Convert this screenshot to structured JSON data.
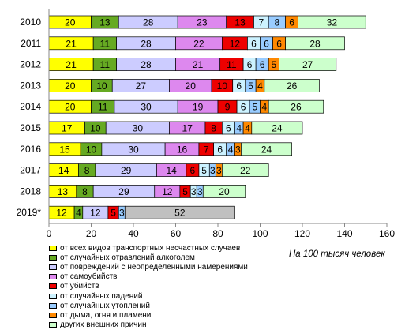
{
  "chart_data": {
    "type": "bar",
    "orientation": "horizontal",
    "stacked": true,
    "categories": [
      "2010",
      "2011",
      "2012",
      "2013",
      "2014",
      "2015",
      "2016",
      "2017",
      "2018",
      "2019*"
    ],
    "xlim": [
      0,
      160
    ],
    "xticks": [
      0,
      20,
      40,
      60,
      80,
      100,
      120,
      140,
      160
    ],
    "grid": false,
    "legend_position": "bottom-left",
    "note": "На 100 тысяч человек",
    "series": [
      {
        "name": "от всех видов транспортных несчастных случаев",
        "color": "#ffff00",
        "values": [
          20,
          21,
          21,
          20,
          20,
          17,
          15,
          14,
          13,
          12
        ]
      },
      {
        "name": "от случайных отравлений алкоголем",
        "color": "#66aa22",
        "values": [
          13,
          11,
          11,
          10,
          11,
          10,
          10,
          8,
          8,
          4
        ]
      },
      {
        "name": "от повреждений с неопределенными  намерениями",
        "color": "#ccccff",
        "values": [
          28,
          28,
          28,
          27,
          30,
          30,
          30,
          29,
          29,
          12
        ]
      },
      {
        "name": "от самоубийств",
        "color": "#dd88ee",
        "values": [
          23,
          22,
          21,
          20,
          19,
          17,
          16,
          14,
          12,
          0
        ]
      },
      {
        "name": "от убийств",
        "color": "#ee0000",
        "values": [
          13,
          12,
          11,
          10,
          9,
          8,
          7,
          6,
          5,
          5
        ]
      },
      {
        "name": "от случайных падений",
        "color": "#ccf2ff",
        "values": [
          7,
          6,
          6,
          6,
          6,
          6,
          6,
          5,
          3,
          0
        ]
      },
      {
        "name": "от случайных утоплений",
        "color": "#99ccff",
        "values": [
          8,
          6,
          6,
          5,
          5,
          4,
          4,
          3,
          3,
          3
        ]
      },
      {
        "name": "от дыма, огня и пламени",
        "color": "#ff8800",
        "values": [
          6,
          6,
          5,
          4,
          4,
          4,
          3,
          3,
          0,
          0
        ]
      },
      {
        "name": "других внешних причин",
        "color": "#ccffcc",
        "values": [
          32,
          28,
          27,
          26,
          26,
          24,
          24,
          22,
          20,
          0
        ]
      },
      {
        "name": "",
        "color": "#c0c0c0",
        "values": [
          0,
          0,
          0,
          0,
          0,
          0,
          0,
          0,
          0,
          52
        ]
      }
    ]
  }
}
